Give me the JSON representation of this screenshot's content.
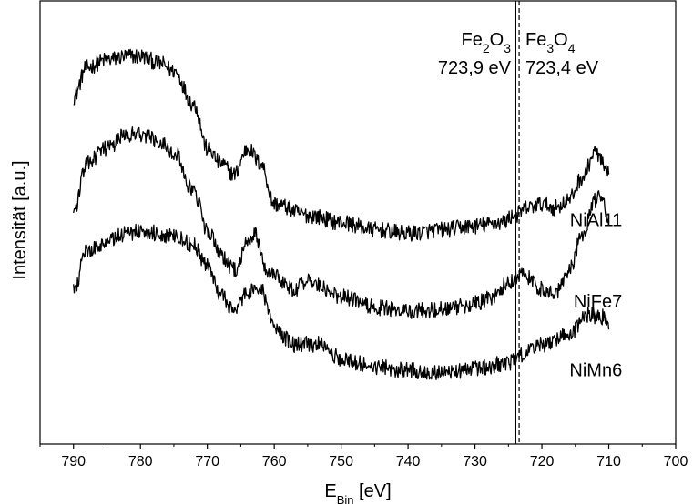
{
  "chart_data": {
    "type": "line",
    "xlabel": {
      "main": "E",
      "sub": "Bin",
      "unit": " [eV]"
    },
    "ylabel": "Intensität [a.u.]",
    "xlim": [
      795,
      700
    ],
    "x_ticks": [
      790,
      780,
      770,
      760,
      750,
      740,
      730,
      720,
      710,
      700
    ],
    "y_ticks": [],
    "grid": false,
    "legend": "none",
    "reference_lines": [
      {
        "x": 723.9,
        "style": "solid",
        "compound": {
          "a": "Fe",
          "a_sub": "2",
          "b": "O",
          "b_sub": "3"
        },
        "energy": "723,9 eV"
      },
      {
        "x": 723.4,
        "style": "dashed",
        "compound": {
          "a": "Fe",
          "a_sub": "3",
          "b": "O",
          "b_sub": "4"
        },
        "energy": "723,4 eV"
      }
    ],
    "series": [
      {
        "name": "NiAl11",
        "x": [
          790,
          788,
          785,
          782,
          780,
          777,
          775,
          772,
          770,
          768,
          766,
          764,
          762,
          760,
          755,
          750,
          745,
          740,
          735,
          730,
          726,
          724,
          722,
          720,
          718,
          716,
          714,
          712,
          710
        ],
        "y": [
          3.9,
          4.3,
          4.4,
          4.45,
          4.45,
          4.35,
          4.25,
          3.8,
          3.2,
          3.0,
          2.85,
          3.2,
          3.0,
          2.45,
          2.3,
          2.2,
          2.1,
          2.05,
          2.1,
          2.15,
          2.2,
          2.3,
          2.4,
          2.45,
          2.4,
          2.5,
          2.8,
          3.15,
          2.85
        ]
      },
      {
        "name": "NiFe7",
        "x": [
          790,
          788,
          785,
          782,
          780,
          777,
          775,
          772,
          770,
          768,
          766,
          764,
          763,
          761,
          757,
          755,
          750,
          745,
          740,
          735,
          730,
          727,
          725,
          723,
          720,
          718,
          716,
          714,
          712,
          711,
          710
        ],
        "y": [
          2.35,
          3.0,
          3.2,
          3.4,
          3.4,
          3.3,
          3.15,
          2.6,
          2.1,
          1.75,
          1.55,
          1.9,
          2.05,
          1.55,
          1.3,
          1.4,
          1.2,
          1.05,
          1.0,
          1.02,
          1.1,
          1.2,
          1.4,
          1.5,
          1.3,
          1.25,
          1.55,
          2.0,
          2.5,
          2.55,
          2.25
        ]
      },
      {
        "name": "NiMn6",
        "x": [
          790,
          788,
          785,
          782,
          780,
          777,
          775,
          772,
          770,
          768,
          766,
          764,
          762,
          760,
          757,
          753,
          750,
          745,
          740,
          735,
          730,
          725,
          722,
          720,
          716,
          713,
          711,
          710
        ],
        "y": [
          1.3,
          1.8,
          1.95,
          2.05,
          2.1,
          2.05,
          2.0,
          1.9,
          1.6,
          1.2,
          1.0,
          1.25,
          1.3,
          0.75,
          0.55,
          0.55,
          0.35,
          0.25,
          0.2,
          0.15,
          0.22,
          0.3,
          0.45,
          0.55,
          0.7,
          0.95,
          0.92,
          0.75
        ]
      }
    ],
    "ylim": [
      -0.8,
      5.2
    ]
  }
}
